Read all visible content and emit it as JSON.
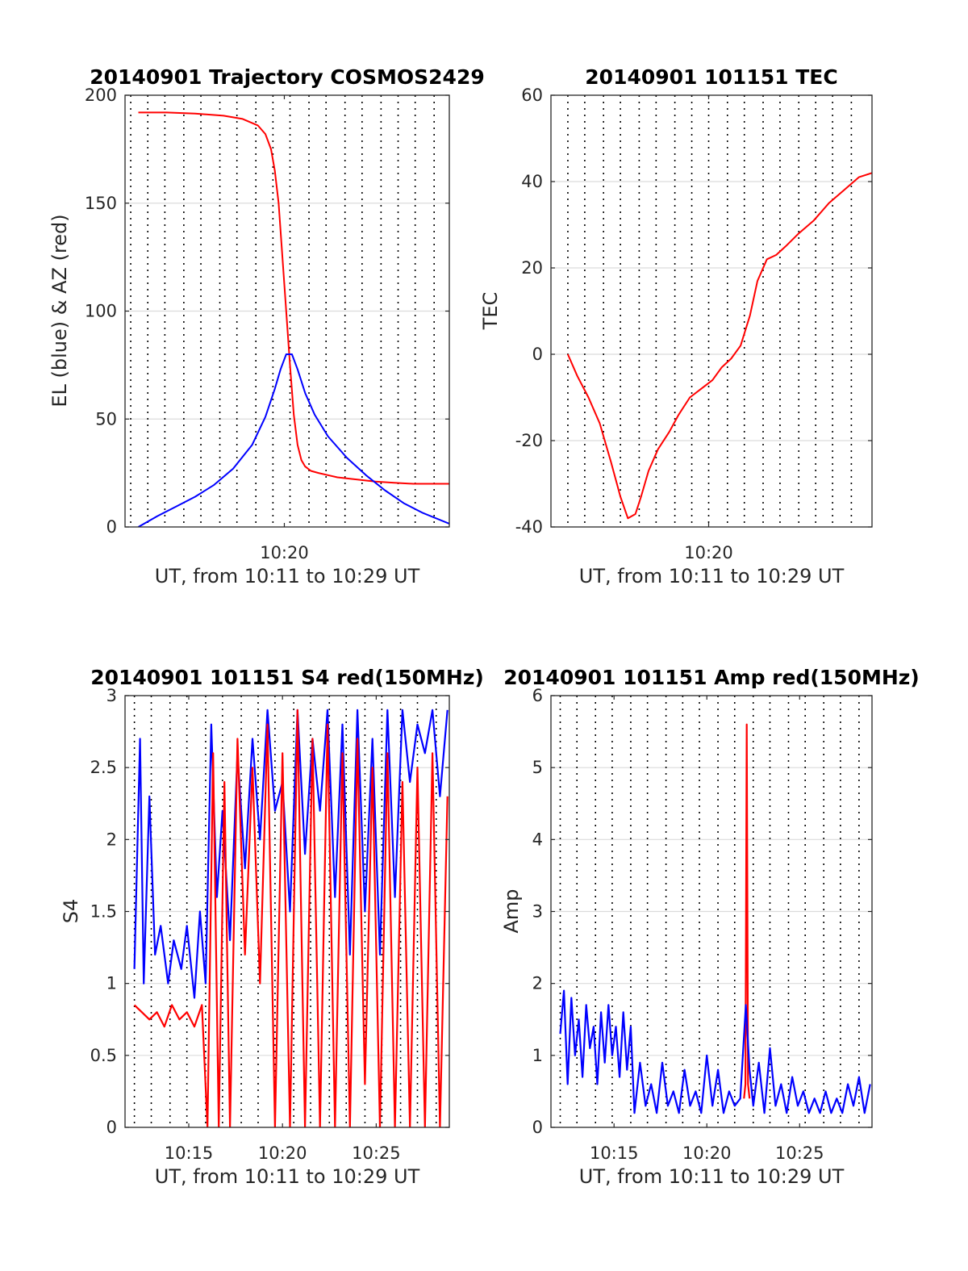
{
  "colors": {
    "red": "#ff0000",
    "blue": "#0000ff",
    "grid": "#dcdcdc",
    "axis": "#262626"
  },
  "chart_data": [
    {
      "id": "trajectory",
      "type": "line",
      "title": "20140901 Trajectory COSMOS2429",
      "xlabel": "UT, from 10:11 to 10:29 UT",
      "ylabel": "EL (blue) & AZ (red)",
      "xlim_min": [
        611.8,
        628.9
      ],
      "ylim": [
        0,
        200
      ],
      "yticks": [
        0,
        50,
        100,
        150,
        200
      ],
      "ytick_labels": [
        "0",
        "50",
        "100",
        "150",
        "200"
      ],
      "xticks_min": [
        620.2
      ],
      "xtick_labels": [
        "10:20"
      ],
      "vgrid_min": [
        612.1,
        613.0,
        613.9,
        614.9,
        615.8,
        616.8,
        617.7,
        618.7,
        619.6,
        620.5,
        621.5,
        622.4,
        623.4,
        624.3,
        625.3,
        626.2,
        627.1,
        628.1
      ],
      "grid": true,
      "series": [
        {
          "color": "red",
          "x": [
            612.5,
            614,
            615.5,
            617,
            618,
            618.8,
            619.2,
            619.5,
            619.7,
            619.9,
            620.1,
            620.3,
            620.5,
            620.7,
            620.9,
            621.1,
            621.3,
            621.6,
            622,
            622.5,
            623,
            624,
            625,
            626,
            627,
            628.9
          ],
          "y": [
            192,
            192,
            191.5,
            190.5,
            189,
            186,
            182,
            175,
            165,
            150,
            125,
            100,
            75,
            52,
            38,
            31,
            28,
            26,
            25,
            24,
            23,
            22,
            21,
            20.5,
            20,
            20
          ]
        },
        {
          "color": "blue",
          "x": [
            612.5,
            613.5,
            614.5,
            615.5,
            616.5,
            617.5,
            618.5,
            619.2,
            619.7,
            620.0,
            620.3,
            620.6,
            620.9,
            621.3,
            621.8,
            622.5,
            623.5,
            624.5,
            625.5,
            626.5,
            627.5,
            628.9
          ],
          "y": [
            0,
            5,
            9.5,
            14,
            19.5,
            27,
            38,
            51,
            64,
            73,
            80,
            80,
            73,
            62,
            52,
            42,
            32,
            24,
            17,
            11,
            6.5,
            1.5
          ]
        }
      ]
    },
    {
      "id": "tec",
      "type": "line",
      "title": "20140901 101151 TEC",
      "xlabel": "UT, from 10:11 to 10:29 UT",
      "ylabel": "TEC",
      "xlim_min": [
        611.8,
        628.9
      ],
      "ylim": [
        -40,
        60
      ],
      "yticks": [
        -40,
        -20,
        0,
        20,
        40,
        60
      ],
      "ytick_labels": [
        "-40",
        "-20",
        "0",
        "20",
        "40",
        "60"
      ],
      "xticks_min": [
        620.2
      ],
      "xtick_labels": [
        "10:20"
      ],
      "vgrid_min": [
        612.7,
        613.6,
        614.6,
        615.5,
        616.5,
        617.4,
        618.4,
        619.3,
        620.2,
        621.2,
        622.1,
        623.1,
        624.0,
        625.0,
        625.9,
        626.8,
        627.8
      ],
      "grid": true,
      "series": [
        {
          "color": "red",
          "x": [
            612.7,
            613.2,
            613.8,
            614.4,
            615.0,
            615.5,
            615.9,
            616.3,
            616.6,
            617.0,
            617.5,
            618.1,
            618.6,
            619.2,
            619.8,
            620.4,
            620.9,
            621.4,
            621.9,
            622.4,
            622.8,
            623.3,
            623.8,
            624.3,
            625.0,
            625.8,
            626.6,
            627.4,
            628.2,
            628.9
          ],
          "y": [
            0,
            -5,
            -10,
            -16,
            -25,
            -33,
            -38,
            -37,
            -33,
            -27,
            -22,
            -18,
            -14,
            -10,
            -8,
            -6,
            -3,
            -1,
            2,
            9,
            17,
            22,
            23,
            25,
            28,
            31,
            35,
            38,
            41,
            42
          ]
        }
      ]
    },
    {
      "id": "s4",
      "type": "line",
      "title": "20140901 101151 S4 red(150MHz)",
      "xlabel": "UT, from 10:11 to 10:29 UT",
      "ylabel": "S4",
      "xlim_min": [
        611.6,
        628.9
      ],
      "ylim": [
        0,
        3
      ],
      "yticks": [
        0,
        0.5,
        1,
        1.5,
        2,
        2.5,
        3
      ],
      "ytick_labels": [
        "0",
        "0.5",
        "1",
        "1.5",
        "2",
        "2.5",
        "3"
      ],
      "xticks_min": [
        615,
        620,
        625
      ],
      "xtick_labels": [
        "10:15",
        "10:20",
        "10:25"
      ],
      "vgrid_min": [
        612.1,
        613.0,
        614.0,
        614.9,
        615.9,
        616.8,
        617.8,
        618.7,
        619.6,
        620.6,
        621.5,
        622.5,
        623.4,
        624.4,
        625.3,
        626.3,
        627.2,
        628.2
      ],
      "grid": true,
      "series": [
        {
          "color": "blue",
          "x": [
            612.1,
            612.4,
            612.6,
            612.9,
            613.2,
            613.5,
            613.9,
            614.2,
            614.6,
            614.9,
            615.3,
            615.6,
            615.9,
            616.2,
            616.5,
            616.8,
            617.2,
            617.6,
            618.0,
            618.4,
            618.8,
            619.2,
            619.6,
            620.0,
            620.4,
            620.8,
            621.2,
            621.6,
            622.0,
            622.4,
            622.8,
            623.2,
            623.6,
            624.0,
            624.4,
            624.8,
            625.2,
            625.6,
            626.0,
            626.4,
            626.8,
            627.2,
            627.6,
            628.0,
            628.4,
            628.8
          ],
          "y": [
            1.1,
            2.7,
            1.0,
            2.3,
            1.2,
            1.4,
            1.0,
            1.3,
            1.1,
            1.4,
            0.9,
            1.5,
            1.0,
            2.8,
            1.6,
            2.2,
            1.3,
            2.6,
            1.8,
            2.7,
            2.0,
            2.9,
            2.2,
            2.4,
            1.5,
            2.9,
            1.9,
            2.7,
            2.2,
            2.9,
            1.6,
            2.8,
            1.2,
            2.9,
            1.5,
            2.7,
            1.2,
            2.9,
            1.6,
            2.9,
            2.4,
            2.8,
            2.6,
            2.9,
            2.3,
            2.9
          ]
        },
        {
          "color": "red",
          "x": [
            612.1,
            612.5,
            612.9,
            613.3,
            613.7,
            614.1,
            614.5,
            614.9,
            615.3,
            615.7,
            616.0,
            616.3,
            616.6,
            616.9,
            617.2,
            617.6,
            618.0,
            618.4,
            618.8,
            619.2,
            619.6,
            620.0,
            620.4,
            620.8,
            621.2,
            621.6,
            622.0,
            622.4,
            622.8,
            623.2,
            623.6,
            624.0,
            624.4,
            624.8,
            625.2,
            625.6,
            626.0,
            626.4,
            626.8,
            627.2,
            627.6,
            628.0,
            628.4,
            628.8
          ],
          "y": [
            0.85,
            0.8,
            0.75,
            0.8,
            0.7,
            0.85,
            0.75,
            0.8,
            0.7,
            0.85,
            0.0,
            2.6,
            0.0,
            2.4,
            0.0,
            2.7,
            1.2,
            2.5,
            1.0,
            2.8,
            0.0,
            2.6,
            0.0,
            2.9,
            0.0,
            2.7,
            0.0,
            2.8,
            0.0,
            2.6,
            0.0,
            2.7,
            0.3,
            2.5,
            0.0,
            2.6,
            0.0,
            2.4,
            0.0,
            2.5,
            0.0,
            2.6,
            0.0,
            2.3
          ]
        }
      ]
    },
    {
      "id": "amp",
      "type": "line",
      "title": "20140901 101151 Amp red(150MHz)",
      "xlabel": "UT, from 10:11 to 10:29 UT",
      "ylabel": "Amp",
      "xlim_min": [
        611.6,
        628.9
      ],
      "ylim": [
        0,
        6
      ],
      "yticks": [
        0,
        1,
        2,
        3,
        4,
        5,
        6
      ],
      "ytick_labels": [
        "0",
        "1",
        "2",
        "3",
        "4",
        "5",
        "6"
      ],
      "xticks_min": [
        615,
        620,
        625
      ],
      "xtick_labels": [
        "10:15",
        "10:20",
        "10:25"
      ],
      "vgrid_min": [
        612.1,
        613.0,
        614.0,
        614.9,
        615.9,
        616.8,
        617.8,
        618.7,
        619.6,
        620.6,
        621.5,
        622.5,
        623.4,
        624.4,
        625.3,
        626.3,
        627.2,
        628.2
      ],
      "grid": true,
      "series": [
        {
          "color": "red",
          "x": [
            622.0,
            622.08,
            622.15,
            622.22,
            622.3
          ],
          "y": [
            0.4,
            0.6,
            5.6,
            0.6,
            0.4
          ]
        },
        {
          "color": "blue",
          "x": [
            612.1,
            612.3,
            612.5,
            612.7,
            612.9,
            613.1,
            613.3,
            613.5,
            613.7,
            613.9,
            614.1,
            614.3,
            614.5,
            614.7,
            614.9,
            615.1,
            615.3,
            615.5,
            615.7,
            615.9,
            616.1,
            616.4,
            616.7,
            617.0,
            617.3,
            617.6,
            617.9,
            618.2,
            618.5,
            618.8,
            619.1,
            619.4,
            619.7,
            620.0,
            620.3,
            620.6,
            620.9,
            621.2,
            621.5,
            621.8,
            622.1,
            622.3,
            622.5,
            622.8,
            623.1,
            623.4,
            623.7,
            624.0,
            624.3,
            624.6,
            624.9,
            625.2,
            625.5,
            625.8,
            626.1,
            626.4,
            626.7,
            627.0,
            627.3,
            627.6,
            627.9,
            628.2,
            628.5,
            628.8
          ],
          "y": [
            1.3,
            1.9,
            0.6,
            1.8,
            1.0,
            1.5,
            0.7,
            1.7,
            1.1,
            1.4,
            0.6,
            1.6,
            0.9,
            1.7,
            1.0,
            1.4,
            0.7,
            1.6,
            0.8,
            1.4,
            0.2,
            0.9,
            0.3,
            0.6,
            0.2,
            0.9,
            0.3,
            0.5,
            0.2,
            0.8,
            0.3,
            0.5,
            0.2,
            1.0,
            0.3,
            0.8,
            0.2,
            0.5,
            0.3,
            0.4,
            1.7,
            0.8,
            0.3,
            0.9,
            0.2,
            1.1,
            0.3,
            0.6,
            0.2,
            0.7,
            0.3,
            0.5,
            0.2,
            0.4,
            0.2,
            0.5,
            0.2,
            0.4,
            0.2,
            0.6,
            0.3,
            0.7,
            0.2,
            0.6
          ]
        }
      ]
    }
  ]
}
